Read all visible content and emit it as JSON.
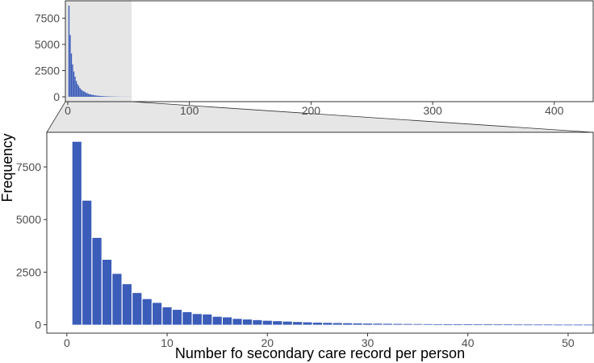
{
  "chart_data": {
    "type": "bar",
    "style": "histogram with zoomed inset (facet_zoom)",
    "bar_color": "#3b5cb8",
    "zoom_fill": "#e6e6e6",
    "title": "",
    "xlabel": "Number fo secondary care record per person",
    "ylabel": "Frequency",
    "overview": {
      "xlim": [
        -2,
        432
      ],
      "ylim": [
        0,
        8700
      ],
      "x_ticks": [
        0,
        100,
        200,
        300,
        400
      ],
      "y_ticks": [
        0,
        2500,
        5000,
        7500
      ],
      "zoom_range": [
        -2,
        52.5
      ]
    },
    "zoom": {
      "xlim": [
        -2,
        52.5
      ],
      "ylim": [
        -400,
        9150
      ],
      "x_ticks": [
        0,
        10,
        20,
        30,
        40,
        50
      ],
      "y_ticks": [
        0,
        2500,
        5000,
        7500
      ]
    },
    "x": [
      1,
      2,
      3,
      4,
      5,
      6,
      7,
      8,
      9,
      10,
      11,
      12,
      13,
      14,
      15,
      16,
      17,
      18,
      19,
      20,
      21,
      22,
      23,
      24,
      25,
      26,
      27,
      28,
      29,
      30,
      31,
      32,
      33,
      34,
      35,
      36,
      37,
      38,
      39,
      40,
      41,
      42,
      43,
      44,
      45,
      46,
      47,
      48,
      49,
      50,
      51,
      52,
      53,
      54,
      55,
      56,
      57,
      58,
      59,
      60
    ],
    "values": [
      8700,
      5900,
      4130,
      3090,
      2420,
      1930,
      1510,
      1220,
      1040,
      830,
      710,
      600,
      510,
      490,
      380,
      350,
      280,
      250,
      220,
      190,
      170,
      150,
      130,
      115,
      100,
      90,
      80,
      72,
      64,
      56,
      50,
      45,
      40,
      36,
      32,
      28,
      25,
      22,
      20,
      18,
      16,
      14,
      12,
      11,
      10,
      9,
      8,
      7,
      6,
      5,
      5,
      4,
      4,
      3,
      3,
      3,
      2,
      2,
      2,
      1
    ]
  }
}
